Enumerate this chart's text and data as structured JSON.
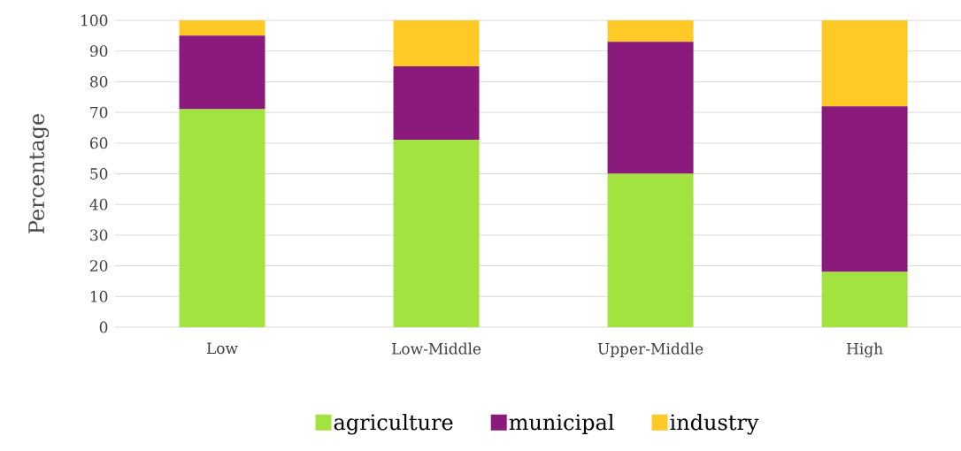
{
  "chart_data": {
    "type": "bar",
    "stacked": true,
    "ylabel": "Percentage",
    "categories": [
      "Low",
      "Low-Middle",
      "Upper-Middle",
      "High"
    ],
    "series": [
      {
        "name": "agriculture",
        "color": "#a3e33f",
        "values": [
          71,
          61,
          50,
          18
        ]
      },
      {
        "name": "municipal",
        "color": "#8b1a7d",
        "values": [
          24,
          24,
          43,
          54
        ]
      },
      {
        "name": "industry",
        "color": "#ffc926",
        "values": [
          5,
          15,
          7,
          28
        ]
      }
    ],
    "ylim": [
      0,
      100
    ],
    "yticks": [
      0,
      10,
      20,
      30,
      40,
      50,
      60,
      70,
      80,
      90,
      100
    ],
    "grid": "y",
    "legend": "bottom"
  }
}
